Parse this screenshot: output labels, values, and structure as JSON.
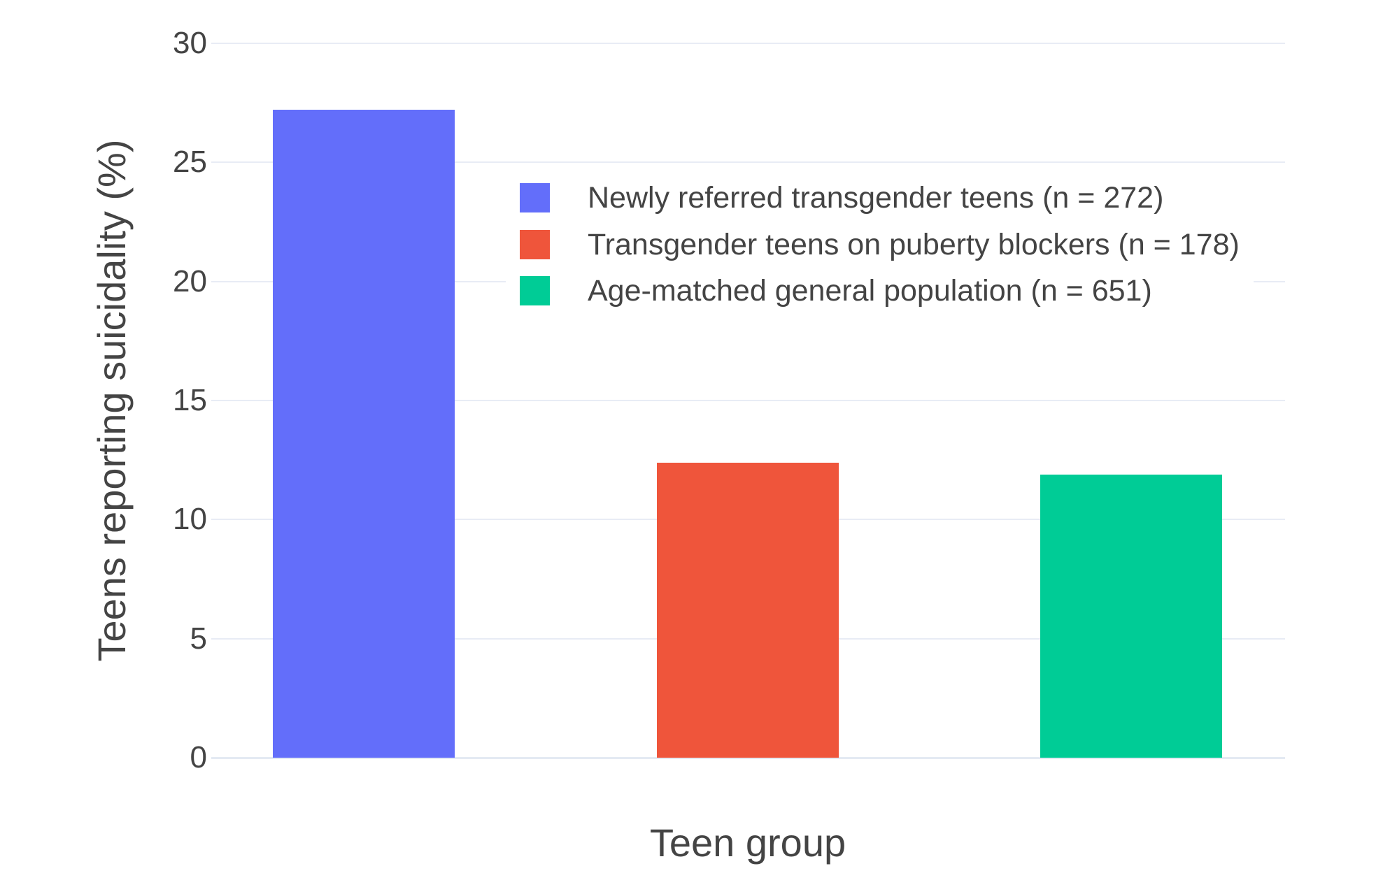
{
  "chart_data": {
    "type": "bar",
    "title": "",
    "xlabel": "Teen group",
    "ylabel": "Teens reporting suicidality (%)",
    "categories": [
      "Newly referred transgender teens (n = 272)",
      "Transgender teens on puberty blockers (n = 178)",
      "Age-matched general population (n = 651)"
    ],
    "values": [
      27.2,
      12.4,
      11.9
    ],
    "bar_colors": [
      "#636EFA",
      "#EF553B",
      "#00CC96"
    ],
    "ylim": [
      0,
      30
    ],
    "yticks": [
      0,
      5,
      10,
      15,
      20,
      25,
      30
    ],
    "grid": true,
    "legend_position": "inside-upper-right"
  },
  "axes": {
    "x_title": "Teen group",
    "y_title": "Teens reporting suicidality (%)",
    "y_tick_labels": [
      "0",
      "5",
      "10",
      "15",
      "20",
      "25",
      "30"
    ]
  },
  "legend": {
    "items": [
      {
        "label": "Newly referred transgender teens (n = 272)",
        "color": "#636EFA"
      },
      {
        "label": "Transgender teens on puberty blockers (n = 178)",
        "color": "#EF553B"
      },
      {
        "label": "Age-matched general population (n = 651)",
        "color": "#00CC96"
      }
    ]
  },
  "style": {
    "background": "#FFFFFF",
    "grid_color": "#E8ECF5",
    "zero_line_color": "#E4EAF3",
    "text_color": "#444444"
  }
}
